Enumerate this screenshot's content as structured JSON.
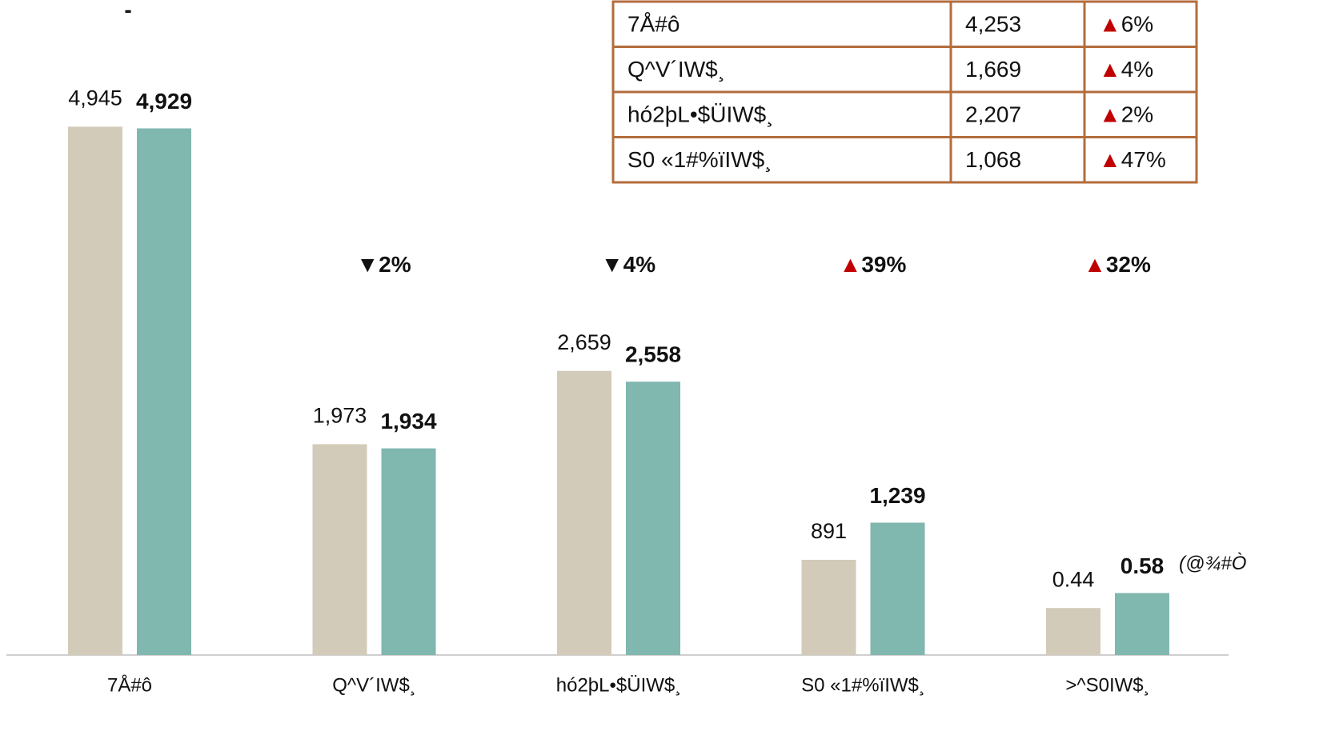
{
  "note": "-",
  "table": {
    "rows": [
      {
        "name": "7Å#ô",
        "value": "4,253",
        "arrow": "▲",
        "change": "6%"
      },
      {
        "name": "Q^V´IW$¸",
        "value": "1,669",
        "arrow": "▲",
        "change": "4%"
      },
      {
        "name": "hó2þL•$ÜIW$¸",
        "value": "2,207",
        "arrow": "▲",
        "change": "2%"
      },
      {
        "name": "S0 «1#%ïIW$¸",
        "value": "1,068",
        "arrow": "▲",
        "change": "47%"
      }
    ]
  },
  "chart_data": [
    {
      "type": "bar",
      "categories": [
        "7Å#ô",
        "Q^V´IW$¸",
        "hó2þL•$ÜIW$¸",
        "S0 «1#%ïIW$¸"
      ],
      "series": [
        {
          "color": "#d3cbb9",
          "values": [
            4945,
            1973,
            2659,
            891
          ],
          "value_labels": [
            "4,945",
            "1,973",
            "2,659",
            "891"
          ]
        },
        {
          "color": "#80b7ae",
          "values": [
            4929,
            1934,
            2558,
            1239
          ],
          "value_labels": [
            "4,929",
            "1,934",
            "2,558",
            "1,239"
          ]
        }
      ],
      "changes": [
        null,
        {
          "arrow": "▼",
          "label": "2%"
        },
        {
          "arrow": "▼",
          "label": "4%"
        },
        {
          "arrow": "▲",
          "label": "39%"
        }
      ],
      "ylim": [
        0,
        5000
      ]
    },
    {
      "type": "bar",
      "categories": [
        ">^S0IW$¸"
      ],
      "series": [
        {
          "color": "#d3cbb9",
          "values": [
            0.44
          ]
        },
        {
          "color": "#80b7ae",
          "values": [
            0.58
          ]
        }
      ],
      "changes": [
        {
          "arrow": "▲",
          "label": "32%"
        }
      ],
      "unit_note": "(@¾#Ò",
      "ylim": [
        0,
        5
      ]
    }
  ]
}
